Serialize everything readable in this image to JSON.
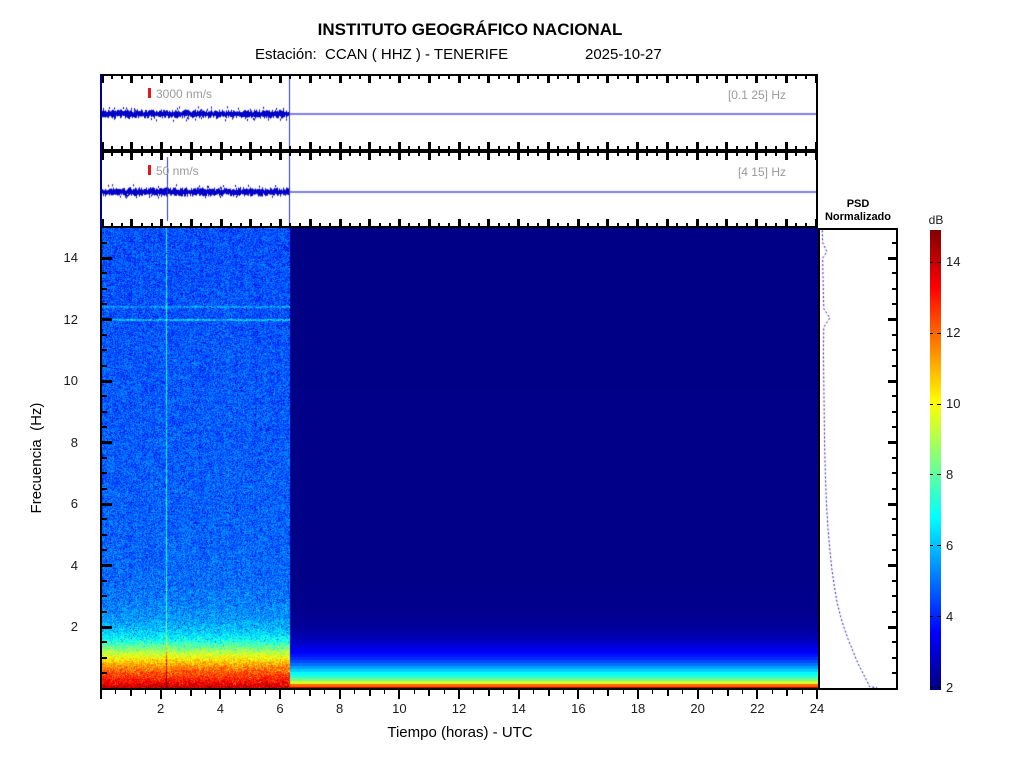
{
  "header": {
    "title": "INSTITUTO GEOGRÁFICO NACIONAL",
    "station_line": "Estación:  CCAN ( HHZ ) - TENERIFE",
    "date": "2025-10-27"
  },
  "seismograms": [
    {
      "scale_label": "3000 nm/s",
      "band_label": "[0.1 25] Hz"
    },
    {
      "scale_label": "50 nm/s",
      "band_label": "[4 15] Hz"
    }
  ],
  "psd_panel": {
    "title_line1": "PSD",
    "title_line2": "Normalizado"
  },
  "colorbar": {
    "label": "dB",
    "tick_values": [
      14,
      12,
      10,
      8,
      6,
      4,
      2
    ],
    "range_db": [
      2,
      15
    ]
  },
  "chart_data": {
    "type": "heatmap",
    "title": "INSTITUTO GEOGRÁFICO NACIONAL",
    "station": "CCAN ( HHZ ) - TENERIFE",
    "date": "2025-10-27",
    "xlabel": "Tiempo (horas) - UTC",
    "ylabel": "Frecuencia  (Hz)",
    "x_tick_values": [
      2,
      4,
      6,
      8,
      10,
      12,
      14,
      16,
      18,
      20,
      22,
      24
    ],
    "y_tick_values": [
      2,
      4,
      6,
      8,
      10,
      12,
      14
    ],
    "xlim": [
      0,
      24
    ],
    "ylim": [
      0,
      15
    ],
    "clim_db": [
      2,
      15
    ],
    "data_end_hours": 6.3,
    "event_time_hours": 2.17,
    "interference_lines_hz": [
      12.0,
      12.42
    ],
    "noise_amplitude_db": 0.9,
    "active_psd_profile_db": [
      [
        0,
        14.4
      ],
      [
        0.15,
        13.6
      ],
      [
        0.35,
        12.8
      ],
      [
        0.55,
        12.2
      ],
      [
        0.75,
        11.4
      ],
      [
        0.95,
        10.4
      ],
      [
        1.15,
        9.4
      ],
      [
        1.35,
        8.3
      ],
      [
        1.55,
        7.2
      ],
      [
        1.75,
        6.5
      ],
      [
        2.0,
        5.9
      ],
      [
        2.3,
        5.5
      ],
      [
        2.8,
        5.2
      ],
      [
        3.5,
        4.95
      ],
      [
        5,
        4.85
      ],
      [
        8,
        4.75
      ],
      [
        12,
        4.65
      ],
      [
        15,
        4.6
      ]
    ],
    "quiet_psd_profile_db": [
      [
        0,
        14.2
      ],
      [
        0.05,
        13.2
      ],
      [
        0.1,
        12.0
      ],
      [
        0.15,
        10.6
      ],
      [
        0.2,
        9.6
      ],
      [
        0.25,
        8.8
      ],
      [
        0.3,
        8.1
      ],
      [
        0.4,
        7.4
      ],
      [
        0.5,
        6.8
      ],
      [
        0.6,
        6.2
      ],
      [
        0.7,
        5.6
      ],
      [
        0.8,
        5.0
      ],
      [
        0.9,
        4.5
      ],
      [
        1.0,
        4.1
      ],
      [
        1.1,
        3.8
      ],
      [
        1.25,
        3.4
      ],
      [
        1.4,
        3.05
      ],
      [
        1.6,
        2.7
      ],
      [
        1.8,
        2.45
      ],
      [
        2.0,
        2.3
      ],
      [
        2.5,
        2.12
      ],
      [
        3.5,
        2.06
      ],
      [
        15,
        2.02
      ]
    ],
    "psd_curve_freq_vs_norm": [
      [
        14.9,
        0.03
      ],
      [
        14.5,
        0.035
      ],
      [
        14.2,
        0.09
      ],
      [
        14.0,
        0.035
      ],
      [
        13.4,
        0.04
      ],
      [
        12.8,
        0.045
      ],
      [
        12.35,
        0.05
      ],
      [
        12.05,
        0.13
      ],
      [
        11.75,
        0.05
      ],
      [
        11.0,
        0.045
      ],
      [
        10.0,
        0.05
      ],
      [
        9.0,
        0.055
      ],
      [
        8.0,
        0.06
      ],
      [
        7.0,
        0.07
      ],
      [
        6.0,
        0.085
      ],
      [
        5.2,
        0.105
      ],
      [
        4.5,
        0.13
      ],
      [
        3.9,
        0.155
      ],
      [
        3.3,
        0.19
      ],
      [
        2.8,
        0.225
      ],
      [
        2.35,
        0.27
      ],
      [
        1.95,
        0.32
      ],
      [
        1.6,
        0.37
      ],
      [
        1.3,
        0.42
      ],
      [
        1.05,
        0.46
      ],
      [
        0.82,
        0.5
      ],
      [
        0.62,
        0.54
      ],
      [
        0.45,
        0.575
      ],
      [
        0.3,
        0.605
      ],
      [
        0.18,
        0.63
      ],
      [
        0.1,
        0.645
      ],
      [
        0.05,
        0.655
      ],
      [
        0.03,
        0.75
      ]
    ],
    "colormap": "jet"
  },
  "colors": {
    "trace_blue": "#0000c8",
    "event_line_blue": "#2a35b4",
    "marker_red": "#e8141e",
    "label_gray": "#9a9a9a",
    "deep_navy": "#000084"
  }
}
